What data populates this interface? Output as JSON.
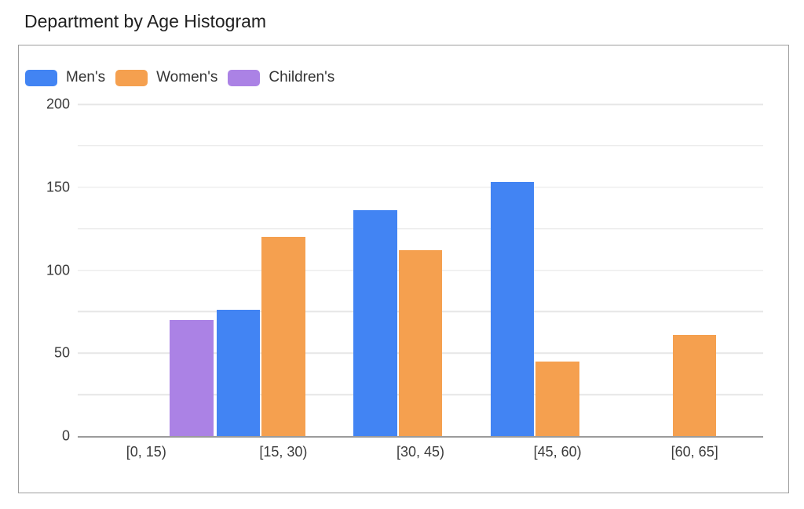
{
  "chart_data": {
    "type": "bar",
    "title": "Department by Age Histogram",
    "categories": [
      "[0, 15)",
      "[15, 30)",
      "[30, 45)",
      "[45, 60)",
      "[60, 65]"
    ],
    "series": [
      {
        "name": "Men's",
        "color": "#4284F3",
        "values": [
          0,
          76,
          136,
          153,
          0
        ]
      },
      {
        "name": "Women's",
        "color": "#F5A04F",
        "values": [
          0,
          120,
          112,
          45,
          61
        ]
      },
      {
        "name": "Children's",
        "color": "#AB82E5",
        "values": [
          70,
          0,
          0,
          0,
          0
        ]
      }
    ],
    "xlabel": "",
    "ylabel": "",
    "ylim": [
      0,
      200
    ],
    "yticks": [
      0,
      50,
      100,
      150,
      200
    ],
    "minor_grid_step": 25,
    "grid": true,
    "legend_position": "top-left",
    "colors": {
      "gridline": "#e6e6e6",
      "axis_line": "#9b9b9b",
      "tick_label": "#3c3c3c",
      "title": "#1f1f1f",
      "frame_border": "#9e9e9e"
    }
  }
}
